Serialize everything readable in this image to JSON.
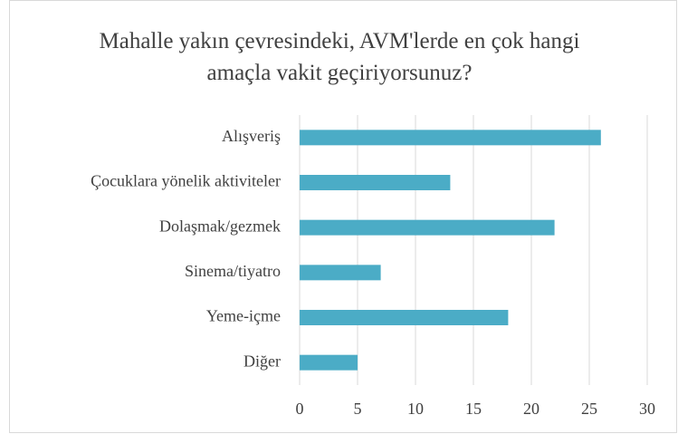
{
  "chart_data": {
    "type": "hbar",
    "title": "Mahalle yakın çevresindeki, AVM'lerde en çok hangi amaçla vakit geçiriyorsunuz?",
    "categories": [
      "Alışveriş",
      "Çocuklara yönelik aktiviteler",
      "Dolaşmak/gezmek",
      "Sinema/tiyatro",
      "Yeme-içme",
      "Diğer"
    ],
    "values": [
      26,
      13,
      22,
      7,
      18,
      5
    ],
    "color": "#4bacc6",
    "xlim": [
      0,
      30
    ],
    "xticks": [
      0,
      5,
      10,
      15,
      20,
      25,
      30
    ],
    "grid": true
  }
}
